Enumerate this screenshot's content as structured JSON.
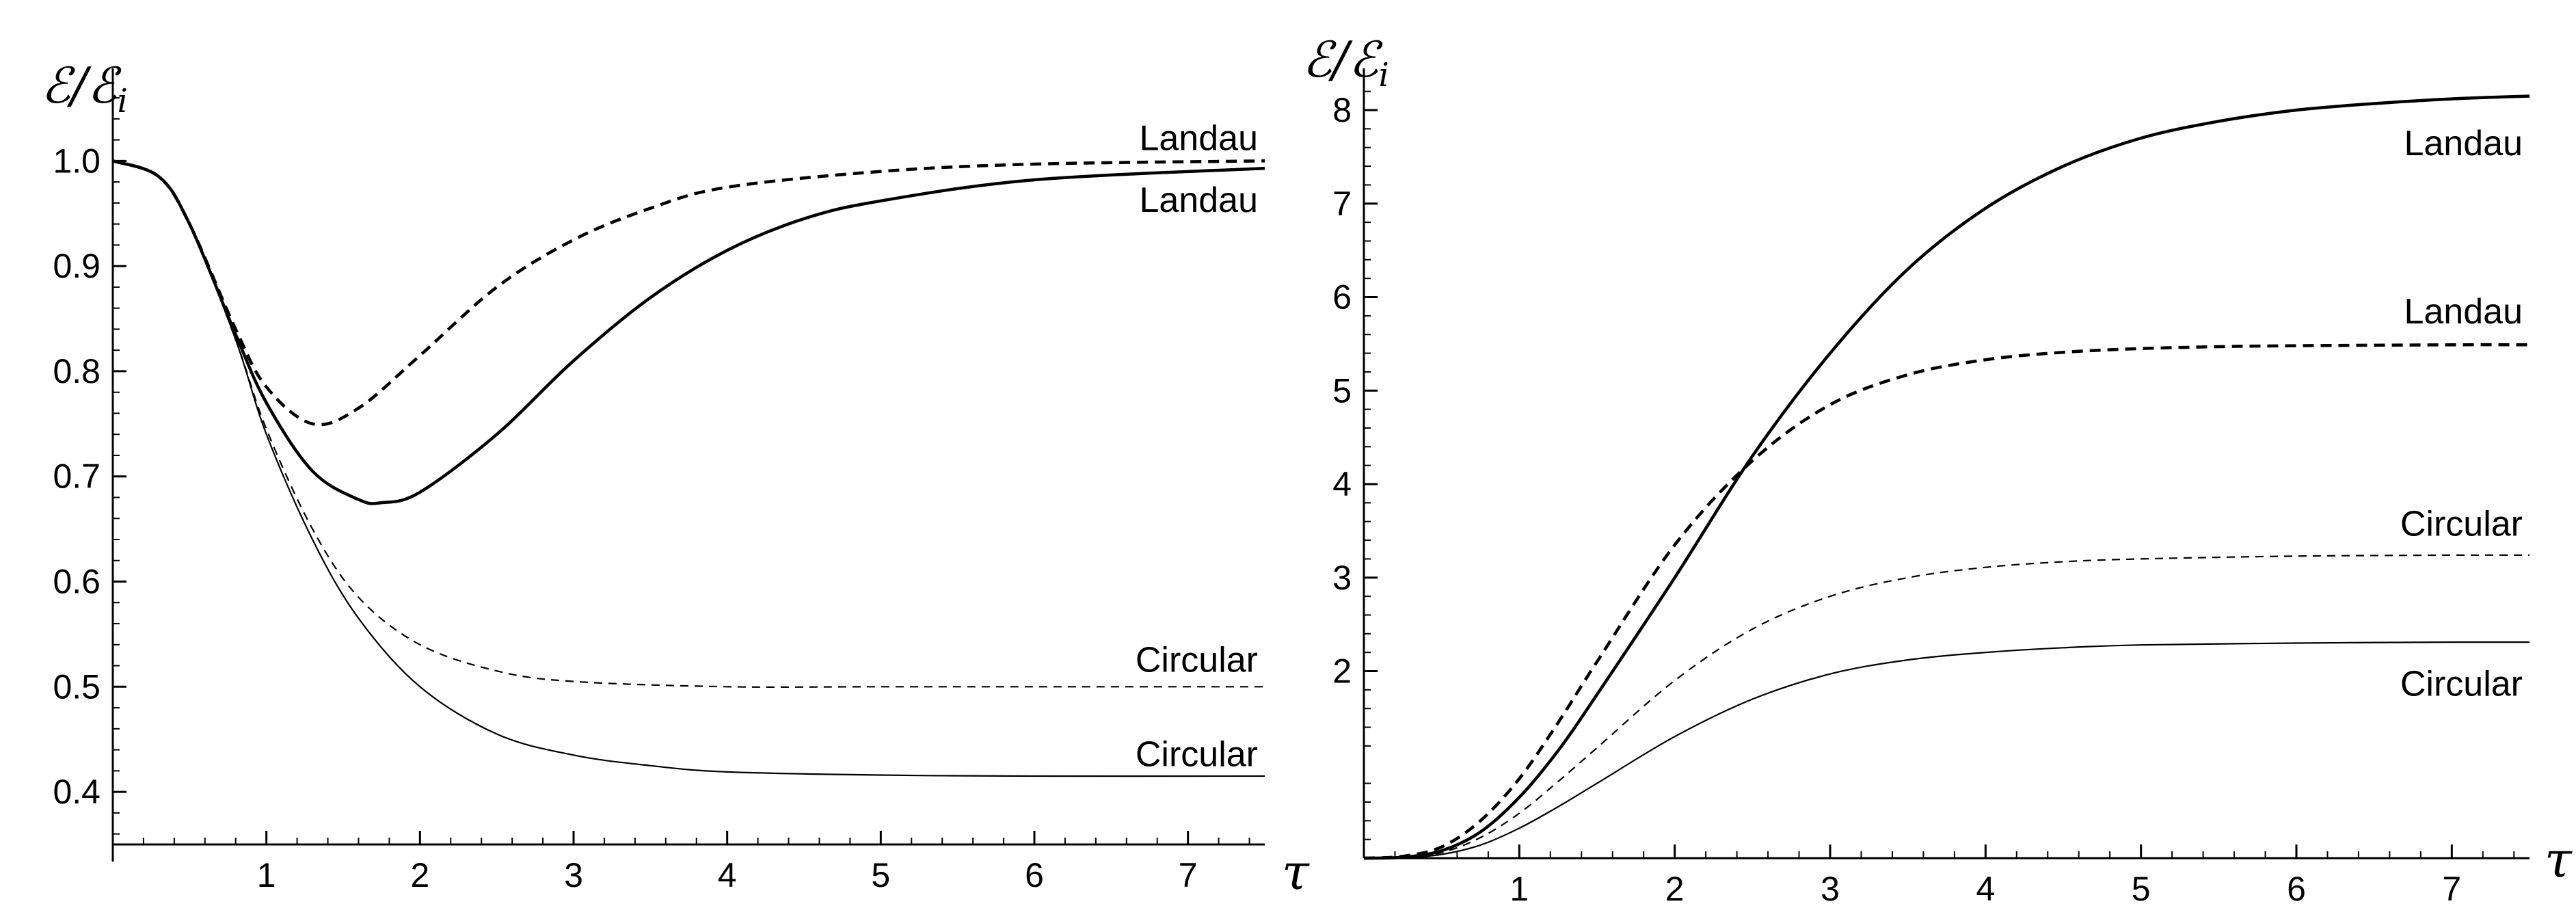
{
  "chart_data": [
    {
      "type": "line",
      "ylabel": "ℰ/ℰ",
      "ylabel_sub": "i",
      "xlabel": "τ",
      "xlim": [
        0,
        7.5
      ],
      "ylim": [
        0.35,
        1.075
      ],
      "x_ticks": [
        {
          "value": 1,
          "label": "1"
        },
        {
          "value": 2,
          "label": "2"
        },
        {
          "value": 3,
          "label": "3"
        },
        {
          "value": 4,
          "label": "4"
        },
        {
          "value": 5,
          "label": "5"
        },
        {
          "value": 6,
          "label": "6"
        },
        {
          "value": 7,
          "label": "7"
        }
      ],
      "y_ticks": [
        {
          "value": 0.4,
          "label": "0.4"
        },
        {
          "value": 0.5,
          "label": "0.5"
        },
        {
          "value": 0.6,
          "label": "0.6"
        },
        {
          "value": 0.7,
          "label": "0.7"
        },
        {
          "value": 0.8,
          "label": "0.8"
        },
        {
          "value": 0.9,
          "label": "0.9"
        },
        {
          "value": 1.0,
          "label": "1.0"
        }
      ],
      "series": [
        {
          "name": "Landau (dashed)",
          "style": "dashed",
          "weight": "thick",
          "x": [
            0,
            0.3,
            0.5,
            0.8,
            1.0,
            1.3,
            1.6,
            2.0,
            2.5,
            3.0,
            3.5,
            4.0,
            5.0,
            6.0,
            7.5
          ],
          "y": [
            1.0,
            0.985,
            0.94,
            0.84,
            0.785,
            0.75,
            0.765,
            0.815,
            0.88,
            0.925,
            0.955,
            0.975,
            0.99,
            0.997,
            1.0
          ]
        },
        {
          "name": "Landau (solid)",
          "style": "solid",
          "weight": "thick",
          "x": [
            0,
            0.3,
            0.5,
            0.8,
            1.0,
            1.3,
            1.6,
            1.75,
            2.0,
            2.5,
            3.0,
            3.5,
            4.0,
            4.5,
            5.0,
            6.0,
            7.5
          ],
          "y": [
            1.0,
            0.985,
            0.94,
            0.835,
            0.77,
            0.705,
            0.678,
            0.675,
            0.685,
            0.74,
            0.81,
            0.87,
            0.915,
            0.945,
            0.962,
            0.982,
            0.993
          ]
        },
        {
          "name": "Circular (dashed)",
          "style": "dashed",
          "weight": "thin",
          "x": [
            0,
            0.3,
            0.5,
            0.8,
            1.0,
            1.3,
            1.6,
            2.0,
            2.5,
            3.0,
            4.0,
            5.0,
            6.0,
            7.5
          ],
          "y": [
            1.0,
            0.985,
            0.94,
            0.83,
            0.745,
            0.65,
            0.585,
            0.54,
            0.515,
            0.505,
            0.5,
            0.5,
            0.5,
            0.5
          ]
        },
        {
          "name": "Circular (solid)",
          "style": "solid",
          "weight": "thin",
          "x": [
            0,
            0.3,
            0.5,
            0.8,
            1.0,
            1.3,
            1.6,
            2.0,
            2.5,
            3.0,
            3.5,
            4.0,
            5.0,
            6.0,
            7.5
          ],
          "y": [
            1.0,
            0.985,
            0.94,
            0.83,
            0.74,
            0.64,
            0.565,
            0.5,
            0.455,
            0.435,
            0.425,
            0.419,
            0.416,
            0.415,
            0.415
          ]
        }
      ],
      "annotations": [
        {
          "text": "Landau",
          "x": 7.0,
          "y": 1.022
        },
        {
          "text": "Landau",
          "x": 7.0,
          "y": 0.963
        },
        {
          "text": "Circular",
          "x": 7.0,
          "y": 0.526
        },
        {
          "text": "Circular",
          "x": 7.0,
          "y": 0.436
        }
      ]
    },
    {
      "type": "line",
      "ylabel": "ℰ/ℰ",
      "ylabel_sub": "i",
      "xlabel": "τ",
      "xlim": [
        0,
        7.5
      ],
      "ylim": [
        0,
        8.3
      ],
      "x_ticks": [
        {
          "value": 1,
          "label": "1"
        },
        {
          "value": 2,
          "label": "2"
        },
        {
          "value": 3,
          "label": "3"
        },
        {
          "value": 4,
          "label": "4"
        },
        {
          "value": 5,
          "label": "5"
        },
        {
          "value": 6,
          "label": "6"
        },
        {
          "value": 7,
          "label": "7"
        }
      ],
      "y_ticks": [
        {
          "value": 2,
          "label": "2"
        },
        {
          "value": 3,
          "label": "3"
        },
        {
          "value": 4,
          "label": "4"
        },
        {
          "value": 5,
          "label": "5"
        },
        {
          "value": 6,
          "label": "6"
        },
        {
          "value": 7,
          "label": "7"
        },
        {
          "value": 8,
          "label": "8"
        }
      ],
      "series": [
        {
          "name": "Landau (solid)",
          "style": "solid",
          "weight": "thick",
          "x": [
            0,
            0.25,
            0.5,
            0.75,
            1.0,
            1.25,
            1.5,
            2.0,
            2.5,
            3.0,
            3.5,
            4.0,
            4.5,
            5.0,
            5.5,
            6.0,
            6.5,
            7.0,
            7.5
          ],
          "y": [
            0,
            0.01,
            0.08,
            0.28,
            0.65,
            1.15,
            1.75,
            3.0,
            4.3,
            5.4,
            6.3,
            6.95,
            7.4,
            7.7,
            7.88,
            8.0,
            8.07,
            8.12,
            8.15
          ]
        },
        {
          "name": "Landau (dashed)",
          "style": "dashed",
          "weight": "thick",
          "x": [
            0,
            0.25,
            0.5,
            0.75,
            1.0,
            1.25,
            1.5,
            2.0,
            2.5,
            3.0,
            3.5,
            4.0,
            4.5,
            5.0,
            5.5,
            6.0,
            7.0,
            7.5
          ],
          "y": [
            0,
            0.02,
            0.12,
            0.4,
            0.85,
            1.45,
            2.1,
            3.35,
            4.25,
            4.85,
            5.17,
            5.33,
            5.41,
            5.45,
            5.47,
            5.48,
            5.49,
            5.49
          ]
        },
        {
          "name": "Circular (dashed)",
          "style": "dashed",
          "weight": "thin",
          "x": [
            0,
            0.25,
            0.5,
            0.75,
            1.0,
            1.25,
            1.5,
            2.0,
            2.5,
            3.0,
            3.5,
            4.0,
            4.5,
            5.0,
            6.0,
            7.0,
            7.5
          ],
          "y": [
            0,
            0.01,
            0.06,
            0.22,
            0.48,
            0.82,
            1.18,
            1.9,
            2.45,
            2.8,
            3.0,
            3.11,
            3.17,
            3.2,
            3.23,
            3.24,
            3.24
          ]
        },
        {
          "name": "Circular (solid)",
          "style": "solid",
          "weight": "thin",
          "x": [
            0,
            0.25,
            0.5,
            0.75,
            1.0,
            1.25,
            1.5,
            2.0,
            2.5,
            3.0,
            3.5,
            4.0,
            4.5,
            5.0,
            6.0,
            7.0,
            7.5
          ],
          "y": [
            0,
            0.005,
            0.04,
            0.14,
            0.32,
            0.55,
            0.8,
            1.3,
            1.7,
            1.97,
            2.12,
            2.2,
            2.25,
            2.28,
            2.3,
            2.31,
            2.31
          ]
        }
      ],
      "annotations": [
        {
          "text": "Landau",
          "x": 7.0,
          "y": 7.65
        },
        {
          "text": "Landau",
          "x": 7.0,
          "y": 5.85
        },
        {
          "text": "Circular",
          "x": 7.0,
          "y": 3.58
        },
        {
          "text": "Circular",
          "x": 7.0,
          "y": 1.87
        }
      ]
    }
  ]
}
